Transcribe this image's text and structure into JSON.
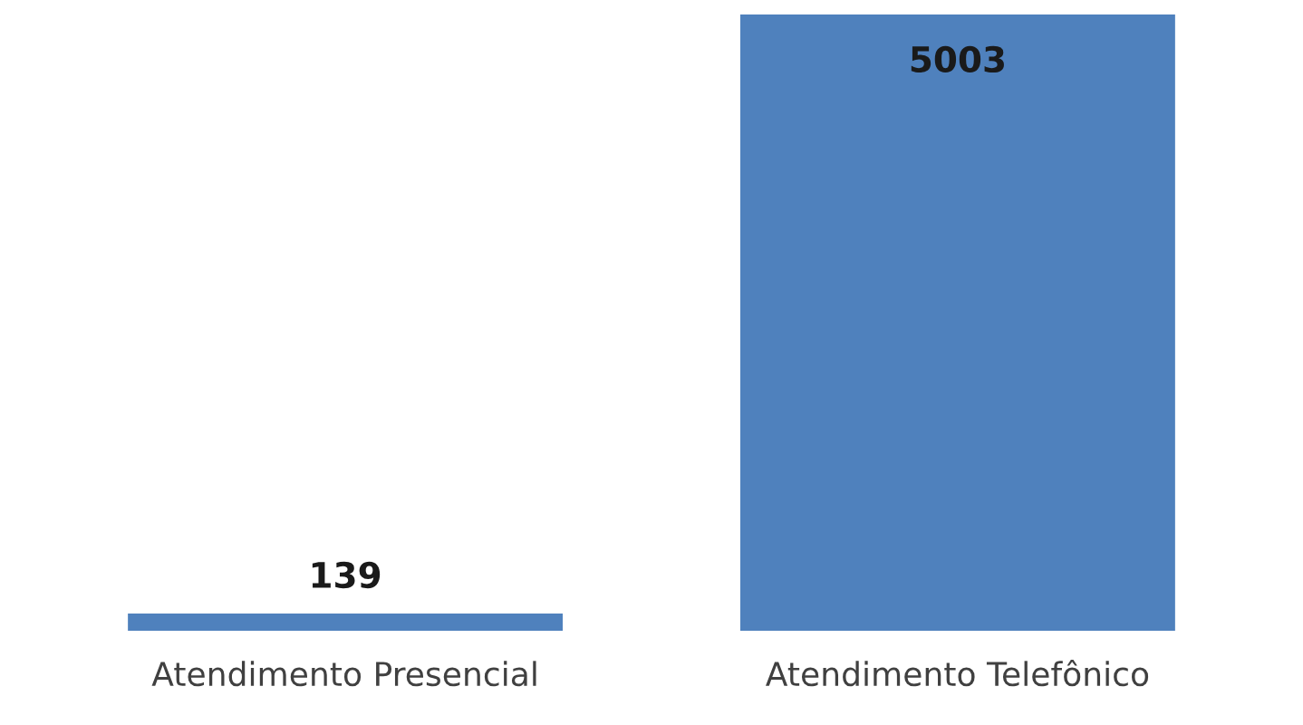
{
  "chart_data": {
    "type": "bar",
    "categories": [
      "Atendimento Presencial",
      "Atendimento Telefônico"
    ],
    "values": [
      139,
      5003
    ],
    "color": "#4f81bd",
    "data_labels": true,
    "grid": false
  }
}
